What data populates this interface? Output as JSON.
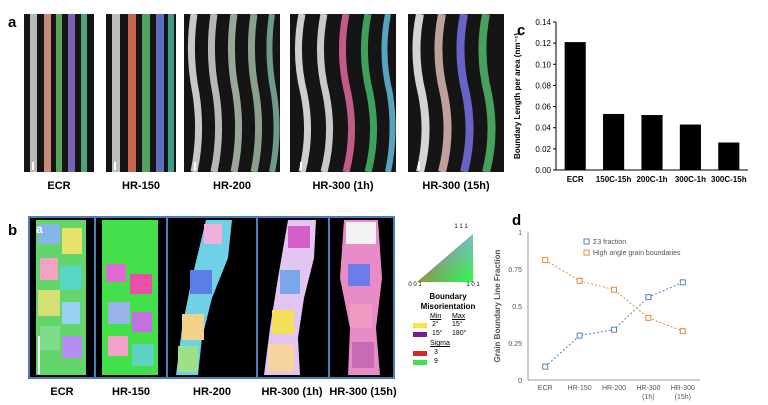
{
  "panel_letters": {
    "a": "a",
    "b": "b",
    "c": "c",
    "d": "d",
    "inner_a": "a"
  },
  "micrographs_a": [
    "ECR",
    "HR-150",
    "HR-200",
    "HR-300 (1h)",
    "HR-300 (15h)"
  ],
  "micrographs_b": [
    "ECR",
    "HR-150",
    "HR-200",
    "HR-300 (1h)",
    "HR-300 (15h)"
  ],
  "ipf_key": {
    "top": "1 1 1",
    "left": "0 0 1",
    "right": "1 0 1"
  },
  "legend": {
    "title_line1": "Boundary",
    "title_line2": "Misorientation",
    "min_header": "Min",
    "max_header": "Max",
    "rows": [
      {
        "min": "2°",
        "max": "15°",
        "color": "#f5e642"
      },
      {
        "min": "15°",
        "max": "180°",
        "color": "#7a1e8c"
      }
    ],
    "sigma_header": "Sigma",
    "sigma_rows": [
      {
        "value": "3",
        "color": "#d9262b"
      },
      {
        "value": "9",
        "color": "#44e04a"
      }
    ]
  },
  "colors": {
    "frame_blue": "#4a7fb5",
    "series_blue": "#4f83c4",
    "series_orange": "#e08a3c",
    "bar": "#000000"
  },
  "chart_data": [
    {
      "type": "bar",
      "panel": "c",
      "categories": [
        "ECR",
        "150C-15h",
        "200C-1h",
        "300C-1h",
        "300C-15h"
      ],
      "values": [
        0.121,
        0.053,
        0.052,
        0.043,
        0.026
      ],
      "ylabel": "Boundary Length per area (nm⁻¹)",
      "ylim": [
        0,
        0.14
      ],
      "yticks": [
        "0.00",
        "0.02",
        "0.04",
        "0.06",
        "0.08",
        "0.10",
        "0.12",
        "0.14"
      ],
      "grid": false
    },
    {
      "type": "line",
      "panel": "d",
      "categories": [
        "ECR",
        "HR-150",
        "HR-200",
        "HR-300\n(1h)",
        "HR-300\n(15h)"
      ],
      "series": [
        {
          "name": "Σ3 fraction",
          "values": [
            0.09,
            0.3,
            0.34,
            0.56,
            0.66
          ]
        },
        {
          "name": "High angle grain boundaries",
          "values": [
            0.81,
            0.67,
            0.61,
            0.42,
            0.33
          ]
        }
      ],
      "ylabel": "Grain Boundary Line Fraction",
      "ylim": [
        0,
        1
      ],
      "yticks": [
        "0",
        "0.25",
        "0.5",
        "0.75",
        "1"
      ],
      "legend": "top-right",
      "grid": false
    }
  ]
}
